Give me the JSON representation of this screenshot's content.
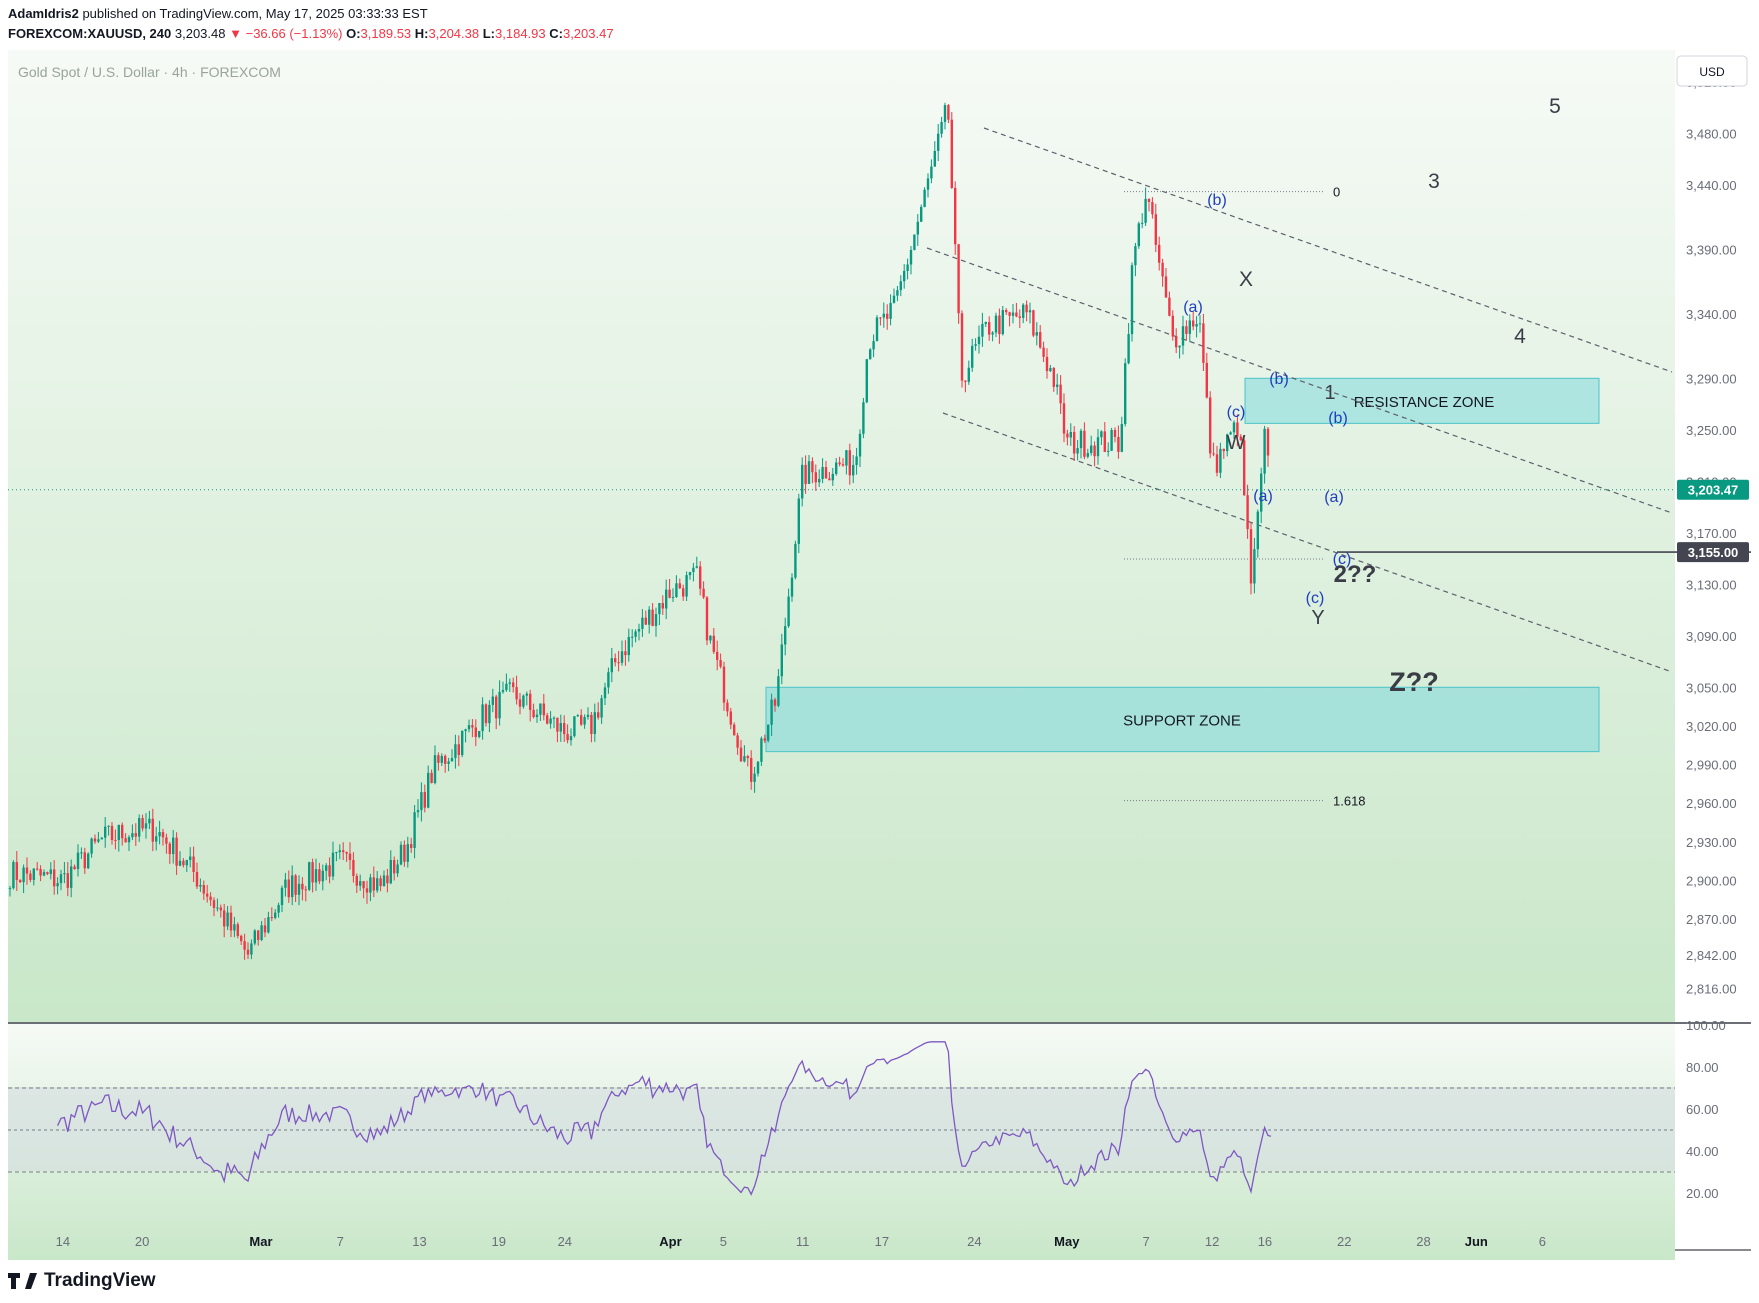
{
  "header": {
    "author": "AdamIdris2",
    "published_text": "published on TradingView.com, May 17, 2025 03:33:33 EST",
    "symbol": "FOREXCOM:XAUUSD, 240",
    "last": "3,203.48",
    "change": "−36.66 (−1.13%)",
    "o_label": "O:",
    "o_value": "3,189.53",
    "h_label": "H:",
    "h_value": "3,204.38",
    "l_label": "L:",
    "l_value": "3,184.93",
    "c_label": "C:",
    "c_value": "3,203.47"
  },
  "footer": {
    "brand": "TradingView"
  },
  "chart_data": {
    "type": "candlestick",
    "title": "Gold Spot / U.S. Dollar · 4h · FOREXCOM",
    "currency": "USD",
    "y_range": [
      2790,
      3545
    ],
    "y_ticks": [
      "3,520.00",
      "3,480.00",
      "3,440.00",
      "3,390.00",
      "3,340.00",
      "3,290.00",
      "3,250.00",
      "3,210.00",
      "3,170.00",
      "3,130.00",
      "3,090.00",
      "3,050.00",
      "3,020.00",
      "2,990.00",
      "2,960.00",
      "2,930.00",
      "2,900.00",
      "2,870.00",
      "2,842.00",
      "2,816.00"
    ],
    "x_ticks": [
      "14",
      "20",
      "Mar",
      "7",
      "13",
      "19",
      "24",
      "Apr",
      "5",
      "11",
      "17",
      "24",
      "May",
      "7",
      "12",
      "16",
      "22",
      "28",
      "Jun",
      "6"
    ],
    "price_path": [
      [
        "2025-02-11",
        2905
      ],
      [
        "2025-02-14",
        2900
      ],
      [
        "2025-02-17",
        2932
      ],
      [
        "2025-02-19",
        2938
      ],
      [
        "2025-02-21",
        2940
      ],
      [
        "2025-02-24",
        2905
      ],
      [
        "2025-02-28",
        2842
      ],
      [
        "2025-03-03",
        2895
      ],
      [
        "2025-03-07",
        2915
      ],
      [
        "2025-03-10",
        2895
      ],
      [
        "2025-03-12",
        2925
      ],
      [
        "2025-03-14",
        2985
      ],
      [
        "2025-03-18",
        3030
      ],
      [
        "2025-03-20",
        3045
      ],
      [
        "2025-03-24",
        3015
      ],
      [
        "2025-03-26",
        3020
      ],
      [
        "2025-03-28",
        3075
      ],
      [
        "2025-04-01",
        3125
      ],
      [
        "2025-04-03",
        3135
      ],
      [
        "2025-04-04",
        3085
      ],
      [
        "2025-04-07",
        2980
      ],
      [
        "2025-04-09",
        3040
      ],
      [
        "2025-04-11",
        3215
      ],
      [
        "2025-04-15",
        3225
      ],
      [
        "2025-04-16",
        3320
      ],
      [
        "2025-04-18",
        3345
      ],
      [
        "2025-04-22",
        3500
      ],
      [
        "2025-04-23",
        3290
      ],
      [
        "2025-04-25",
        3330
      ],
      [
        "2025-04-28",
        3340
      ],
      [
        "2025-04-30",
        3290
      ],
      [
        "2025-05-01",
        3240
      ],
      [
        "2025-05-05",
        3240
      ],
      [
        "2025-05-06",
        3380
      ],
      [
        "2025-05-07",
        3435
      ],
      [
        "2025-05-09",
        3320
      ],
      [
        "2025-05-11",
        3340
      ],
      [
        "2025-05-12",
        3220
      ],
      [
        "2025-05-14",
        3255
      ],
      [
        "2025-05-15",
        3125
      ],
      [
        "2025-05-16",
        3245
      ],
      [
        "2025-05-16",
        3155
      ],
      [
        "2025-05-16",
        3203
      ]
    ],
    "current_price_label": "3,203.47",
    "level_line_label": "3,155.00",
    "zones": [
      {
        "label": "RESISTANCE ZONE",
        "from": 3255,
        "to": 3290
      },
      {
        "label": "SUPPORT ZONE",
        "from": 3000,
        "to": 3050
      }
    ],
    "fib_levels": [
      {
        "label": "0",
        "price": 3435
      },
      {
        "label": "1.618",
        "price": 2962
      }
    ],
    "wave_labels_dark": [
      "X",
      "W",
      "Y",
      "1",
      "2??",
      "3",
      "4",
      "5",
      "Z??"
    ],
    "wave_labels_blue": [
      "(b)",
      "(a)",
      "(c)",
      "(b)",
      "(a)",
      "(c)",
      "(b)",
      "(a)",
      "(c)"
    ],
    "rsi": {
      "ticks": [
        "100.00",
        "80.00",
        "60.00",
        "40.00",
        "20.00"
      ],
      "upper_band": 70,
      "middle_band": 50,
      "lower_band": 30,
      "last_value": 47
    },
    "colors": {
      "up": "#089981",
      "down": "#f23645",
      "rsi": "#7e57c2",
      "zone": "#7fd8dc",
      "last_price_tag": "#089981",
      "level_tag": "#434651"
    }
  }
}
